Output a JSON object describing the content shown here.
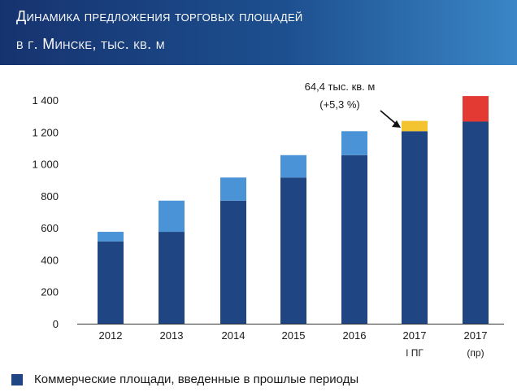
{
  "header": {
    "line1": "Динамика предложения торговых площадей",
    "line2": "в г. Минске, тыс. кв. м"
  },
  "colors": {
    "header_bg": "#1d4f8f",
    "previous": "#1f4582",
    "new": "#4a93d6",
    "h1_2017": "#f4c430",
    "forecast_2017": "#e43a34"
  },
  "chart_data": {
    "type": "bar",
    "stacked": true,
    "categories": [
      "2012",
      "2013",
      "2014",
      "2015",
      "2016",
      "2017",
      "2017"
    ],
    "category_sublabels": [
      "",
      "",
      "",
      "",
      "",
      "I ПГ",
      "(пр)"
    ],
    "series": [
      {
        "name": "Коммерческие площади, введенные в прошлые периоды",
        "color": "#1f4582",
        "values": [
          515,
          575,
          770,
          915,
          1055,
          1205,
          1265
        ]
      },
      {
        "color": "#4a93d6",
        "values": [
          60,
          195,
          145,
          140,
          150,
          0,
          0
        ]
      },
      {
        "color": "#f4c430",
        "values": [
          0,
          0,
          0,
          0,
          0,
          64.4,
          0
        ]
      },
      {
        "color": "#e43a34",
        "values": [
          0,
          0,
          0,
          0,
          0,
          0,
          160
        ]
      }
    ],
    "ylim": [
      0,
      1400
    ],
    "yticks": [
      0,
      200,
      400,
      600,
      800,
      1000,
      1200,
      1400
    ],
    "ytick_labels": [
      "0",
      "200",
      "400",
      "600",
      "800",
      "1 000",
      "1 200",
      "1 400"
    ],
    "annotation": {
      "line1": "64,4 тыс. кв. м",
      "line2": "(+5,3 %)",
      "category_index": 5
    },
    "grid": false,
    "legend": {
      "position": "bottom-left"
    }
  }
}
